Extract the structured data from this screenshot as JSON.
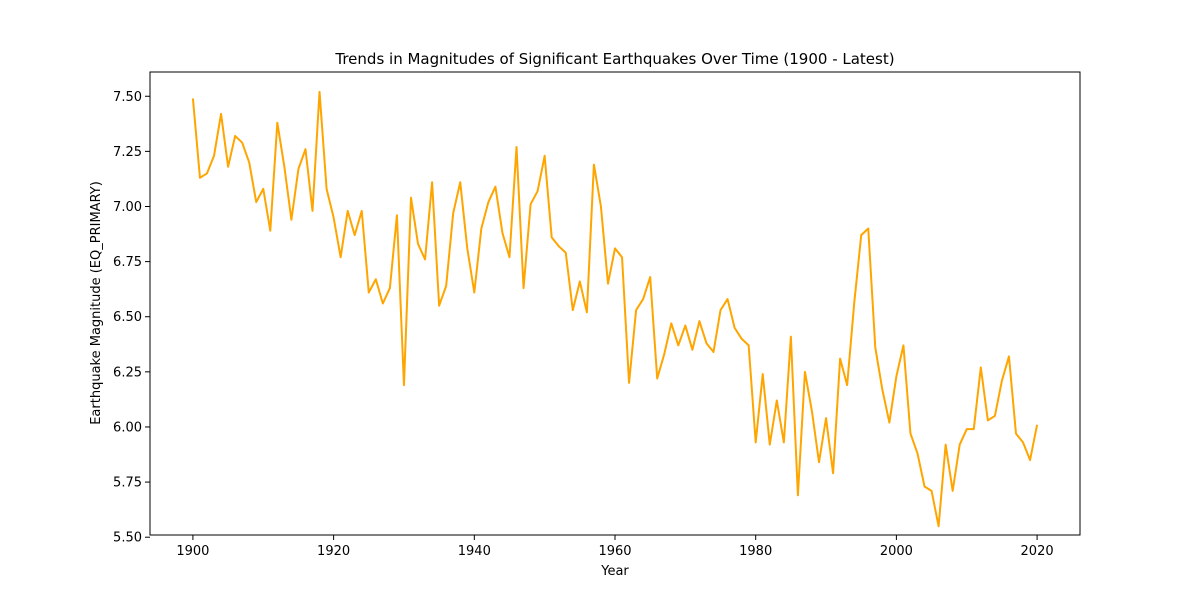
{
  "chart_data": {
    "type": "line",
    "title": "Trends in Magnitudes of Significant Earthquakes Over Time (1900 - Latest)",
    "xlabel": "Year",
    "ylabel": "Earthquake Magnitude (EQ_PRIMARY)",
    "xlim": [
      1893.9,
      2026.1
    ],
    "ylim": [
      5.51,
      7.61
    ],
    "xticks": [
      "1900",
      "1920",
      "1940",
      "1960",
      "1980",
      "2000",
      "2020"
    ],
    "yticks": [
      "5.50",
      "5.75",
      "6.00",
      "6.25",
      "6.50",
      "6.75",
      "7.00",
      "7.25",
      "7.50"
    ],
    "grid": false,
    "colors": {
      "line": "#FFA500"
    },
    "series": [
      {
        "x": [
          1900,
          1901,
          1902,
          1903,
          1904,
          1905,
          1906,
          1907,
          1908,
          1909,
          1910,
          1911,
          1912,
          1913,
          1914,
          1915,
          1916,
          1917,
          1918,
          1919,
          1920,
          1921,
          1922,
          1923,
          1924,
          1925,
          1926,
          1927,
          1928,
          1929,
          1930,
          1931,
          1932,
          1933,
          1934,
          1935,
          1936,
          1937,
          1938,
          1939,
          1940,
          1941,
          1942,
          1943,
          1944,
          1945,
          1946,
          1947,
          1948,
          1949,
          1950,
          1951,
          1952,
          1953,
          1954,
          1955,
          1956,
          1957,
          1958,
          1959,
          1960,
          1961,
          1962,
          1963,
          1964,
          1965,
          1966,
          1967,
          1968,
          1969,
          1970,
          1971,
          1972,
          1973,
          1974,
          1975,
          1976,
          1977,
          1978,
          1979,
          1980,
          1981,
          1982,
          1983,
          1984,
          1985,
          1986,
          1987,
          1988,
          1989,
          1990,
          1991,
          1992,
          1993,
          1994,
          1995,
          1996,
          1997,
          1998,
          1999,
          2000,
          2001,
          2002,
          2003,
          2004,
          2005,
          2006,
          2007,
          2008,
          2009,
          2010,
          2011,
          2012,
          2013,
          2014,
          2015,
          2016,
          2017,
          2018,
          2019,
          2020
        ],
        "values": [
          7.49,
          7.13,
          7.15,
          7.23,
          7.42,
          7.18,
          7.32,
          7.29,
          7.2,
          7.02,
          7.08,
          6.89,
          7.38,
          7.18,
          6.94,
          7.17,
          7.26,
          6.98,
          7.52,
          7.08,
          6.95,
          6.77,
          6.98,
          6.87,
          6.98,
          6.61,
          6.67,
          6.56,
          6.63,
          6.96,
          6.19,
          7.04,
          6.83,
          6.76,
          7.11,
          6.55,
          6.64,
          6.97,
          7.11,
          6.81,
          6.61,
          6.9,
          7.02,
          7.09,
          6.88,
          6.77,
          7.27,
          6.63,
          7.01,
          7.07,
          7.23,
          6.86,
          6.82,
          6.79,
          6.53,
          6.66,
          6.52,
          7.19,
          7.0,
          6.65,
          6.81,
          6.77,
          6.2,
          6.53,
          6.58,
          6.68,
          6.22,
          6.33,
          6.47,
          6.37,
          6.46,
          6.35,
          6.48,
          6.38,
          6.34,
          6.53,
          6.58,
          6.45,
          6.4,
          6.37,
          5.93,
          6.24,
          5.92,
          6.12,
          5.93,
          6.41,
          5.69,
          6.25,
          6.07,
          5.84,
          6.04,
          5.79,
          6.31,
          6.19,
          6.56,
          6.87,
          6.9,
          6.36,
          6.17,
          6.02,
          6.23,
          6.37,
          5.97,
          5.88,
          5.73,
          5.71,
          5.55,
          5.92,
          5.71,
          5.92,
          5.99,
          5.99,
          6.27,
          6.03,
          6.05,
          6.21,
          6.32,
          5.97,
          5.93,
          5.85,
          6.01
        ]
      }
    ]
  }
}
